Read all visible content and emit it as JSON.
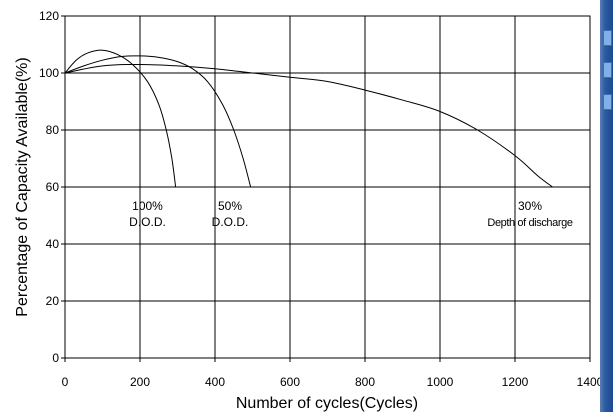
{
  "chart_data": {
    "type": "line",
    "title": "",
    "xlabel": "Number of cycles(Cycles)",
    "ylabel": "Percentage of Capacity Available(%)",
    "xlim": [
      0,
      1400
    ],
    "ylim": [
      0,
      120
    ],
    "x_ticks": [
      0,
      200,
      400,
      600,
      800,
      1000,
      1200,
      1400
    ],
    "y_ticks": [
      0,
      20,
      40,
      60,
      80,
      100,
      120
    ],
    "grid": true,
    "legend": "none",
    "line_color": "#000000",
    "series": [
      {
        "label_lines": [
          "100%",
          "D.O.D."
        ],
        "label_at": [
          220,
          52
        ],
        "points": [
          [
            0,
            100
          ],
          [
            30,
            104.5
          ],
          [
            60,
            107
          ],
          [
            100,
            108
          ],
          [
            140,
            106.5
          ],
          [
            180,
            103
          ],
          [
            220,
            97
          ],
          [
            250,
            89
          ],
          [
            270,
            80
          ],
          [
            285,
            70
          ],
          [
            295,
            60
          ]
        ]
      },
      {
        "label_lines": [
          "50%",
          "D.O.D."
        ],
        "label_at": [
          440,
          52
        ],
        "points": [
          [
            0,
            100
          ],
          [
            50,
            102.5
          ],
          [
            100,
            104.5
          ],
          [
            150,
            105.8
          ],
          [
            200,
            106
          ],
          [
            250,
            105.5
          ],
          [
            300,
            104
          ],
          [
            340,
            101.5
          ],
          [
            380,
            97
          ],
          [
            420,
            89
          ],
          [
            450,
            80
          ],
          [
            475,
            70
          ],
          [
            495,
            60
          ]
        ]
      },
      {
        "label_lines": [
          "30%",
          "Depth of discharge"
        ],
        "label_at": [
          1240,
          52
        ],
        "points": [
          [
            0,
            100
          ],
          [
            100,
            102.5
          ],
          [
            200,
            103
          ],
          [
            300,
            102.5
          ],
          [
            400,
            101.5
          ],
          [
            500,
            100
          ],
          [
            600,
            98.5
          ],
          [
            700,
            97
          ],
          [
            800,
            94
          ],
          [
            900,
            90.5
          ],
          [
            1000,
            86.5
          ],
          [
            1100,
            80
          ],
          [
            1200,
            71
          ],
          [
            1260,
            64
          ],
          [
            1300,
            60
          ]
        ]
      }
    ]
  }
}
